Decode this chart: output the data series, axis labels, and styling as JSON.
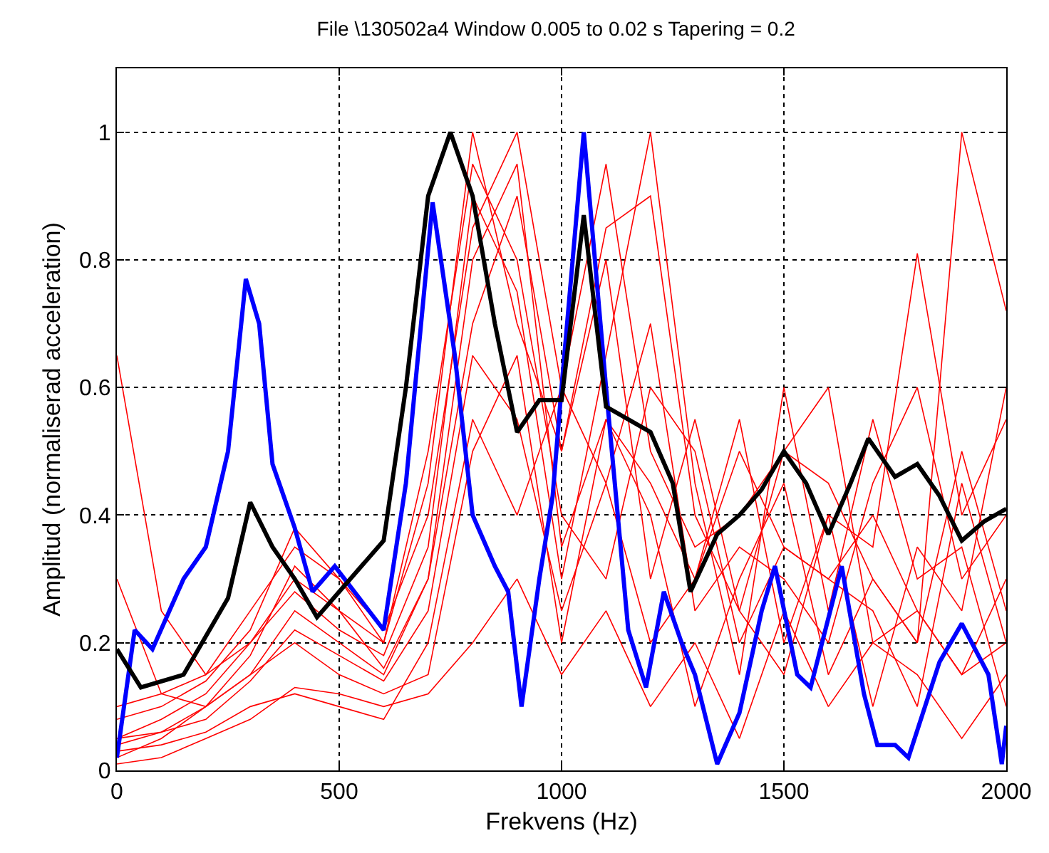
{
  "chart_data": {
    "type": "line",
    "title": "File \\130502a4 Window 0.005 to 0.02 s Tapering = 0.2",
    "xlabel": "Frekvens (Hz)",
    "ylabel": "Amplitud (normaliserad acceleration)",
    "x": [
      0,
      100,
      200,
      300,
      400,
      500,
      600,
      700,
      800,
      900,
      1000,
      1100,
      1200,
      1300,
      1400,
      1500,
      1600,
      1700,
      1800,
      1900,
      2000
    ],
    "xlim": [
      0,
      2000
    ],
    "xticks": [
      0,
      500,
      1000,
      1500,
      2000
    ],
    "ylim": [
      0,
      1.1
    ],
    "yticks": [
      0,
      0.2,
      0.4,
      0.6,
      0.8,
      1
    ],
    "grid": true,
    "marker": "none",
    "line_style": "solid",
    "series": [
      {
        "color": "#ff0000",
        "values": [
          0.65,
          0.25,
          0.15,
          0.25,
          0.35,
          0.3,
          0.2,
          0.5,
          0.95,
          0.8,
          0.4,
          0.3,
          0.6,
          0.5,
          0.2,
          0.35,
          0.3,
          0.4,
          0.25,
          0.15,
          0.3
        ]
      },
      {
        "color": "#ff0000",
        "values": [
          0.05,
          0.08,
          0.12,
          0.2,
          0.3,
          0.25,
          0.2,
          0.45,
          1.0,
          0.7,
          0.5,
          0.85,
          0.9,
          0.4,
          0.25,
          0.5,
          0.45,
          0.3,
          0.2,
          1.0,
          0.72
        ]
      },
      {
        "color": "#ff0000",
        "values": [
          0.02,
          0.05,
          0.1,
          0.15,
          0.25,
          0.2,
          0.15,
          0.3,
          0.8,
          0.95,
          0.35,
          0.55,
          0.45,
          0.3,
          0.55,
          0.2,
          0.4,
          0.35,
          0.81,
          0.4,
          0.55
        ]
      },
      {
        "color": "#ff0000",
        "values": [
          0.1,
          0.12,
          0.15,
          0.2,
          0.28,
          0.22,
          0.18,
          0.35,
          0.9,
          0.75,
          0.3,
          0.65,
          1.0,
          0.45,
          0.15,
          0.6,
          0.25,
          0.55,
          0.3,
          0.35,
          0.1
        ]
      },
      {
        "color": "#ff0000",
        "values": [
          0.03,
          0.04,
          0.06,
          0.1,
          0.12,
          0.1,
          0.08,
          0.2,
          0.55,
          0.4,
          0.6,
          0.95,
          0.5,
          0.35,
          0.4,
          0.5,
          0.6,
          0.2,
          0.25,
          0.15,
          0.2
        ]
      },
      {
        "color": "#ff0000",
        "values": [
          0.08,
          0.1,
          0.14,
          0.22,
          0.38,
          0.3,
          0.22,
          0.4,
          0.85,
          1.0,
          0.6,
          0.45,
          0.7,
          0.25,
          0.35,
          0.3,
          0.2,
          0.45,
          0.6,
          0.3,
          0.4
        ]
      },
      {
        "color": "#ff0000",
        "values": [
          0.3,
          0.12,
          0.1,
          0.15,
          0.2,
          0.15,
          0.12,
          0.15,
          0.5,
          0.65,
          0.2,
          0.55,
          0.4,
          0.1,
          0.3,
          0.45,
          0.15,
          0.3,
          0.2,
          0.5,
          0.25
        ]
      },
      {
        "color": "#ff0000",
        "values": [
          0.01,
          0.02,
          0.05,
          0.08,
          0.13,
          0.12,
          0.1,
          0.12,
          0.2,
          0.3,
          0.15,
          0.25,
          0.1,
          0.2,
          0.05,
          0.25,
          0.1,
          0.2,
          0.15,
          0.05,
          0.15
        ]
      },
      {
        "color": "#ff0000",
        "values": [
          0.05,
          0.06,
          0.1,
          0.18,
          0.32,
          0.25,
          0.16,
          0.3,
          0.7,
          0.9,
          0.5,
          0.8,
          0.3,
          0.55,
          0.25,
          0.15,
          0.4,
          0.1,
          0.35,
          0.25,
          0.6
        ]
      },
      {
        "color": "#ff0000",
        "values": [
          0.04,
          0.06,
          0.08,
          0.14,
          0.22,
          0.18,
          0.14,
          0.25,
          0.65,
          0.55,
          0.25,
          0.45,
          0.2,
          0.3,
          0.5,
          0.35,
          0.3,
          0.25,
          0.1,
          0.45,
          0.2
        ]
      },
      {
        "color": "#0000ff",
        "x": [
          0,
          40,
          80,
          150,
          200,
          250,
          290,
          320,
          350,
          400,
          440,
          490,
          600,
          650,
          710,
          760,
          800,
          850,
          880,
          910,
          950,
          980,
          1000,
          1050,
          1100,
          1150,
          1190,
          1230,
          1270,
          1300,
          1350,
          1400,
          1450,
          1480,
          1530,
          1560,
          1630,
          1680,
          1710,
          1750,
          1780,
          1850,
          1900,
          1960,
          1990,
          2000
        ],
        "values": [
          0.02,
          0.22,
          0.19,
          0.3,
          0.35,
          0.5,
          0.77,
          0.7,
          0.48,
          0.38,
          0.28,
          0.32,
          0.22,
          0.45,
          0.89,
          0.65,
          0.4,
          0.32,
          0.28,
          0.1,
          0.3,
          0.43,
          0.6,
          1.0,
          0.6,
          0.22,
          0.13,
          0.28,
          0.2,
          0.15,
          0.01,
          0.09,
          0.25,
          0.32,
          0.15,
          0.13,
          0.32,
          0.12,
          0.04,
          0.04,
          0.02,
          0.17,
          0.23,
          0.15,
          0.01,
          0.07
        ]
      },
      {
        "color": "#000000",
        "x": [
          0,
          54,
          150,
          250,
          300,
          350,
          400,
          450,
          500,
          600,
          650,
          700,
          750,
          800,
          850,
          900,
          950,
          1000,
          1050,
          1100,
          1200,
          1250,
          1290,
          1350,
          1400,
          1450,
          1500,
          1550,
          1600,
          1650,
          1690,
          1750,
          1800,
          1850,
          1900,
          1950,
          2000
        ],
        "values": [
          0.19,
          0.13,
          0.15,
          0.27,
          0.42,
          0.35,
          0.3,
          0.24,
          0.28,
          0.36,
          0.6,
          0.9,
          1.0,
          0.9,
          0.7,
          0.53,
          0.58,
          0.58,
          0.87,
          0.57,
          0.53,
          0.45,
          0.28,
          0.37,
          0.4,
          0.44,
          0.5,
          0.45,
          0.37,
          0.45,
          0.52,
          0.46,
          0.48,
          0.43,
          0.36,
          0.39,
          0.41
        ]
      }
    ]
  }
}
